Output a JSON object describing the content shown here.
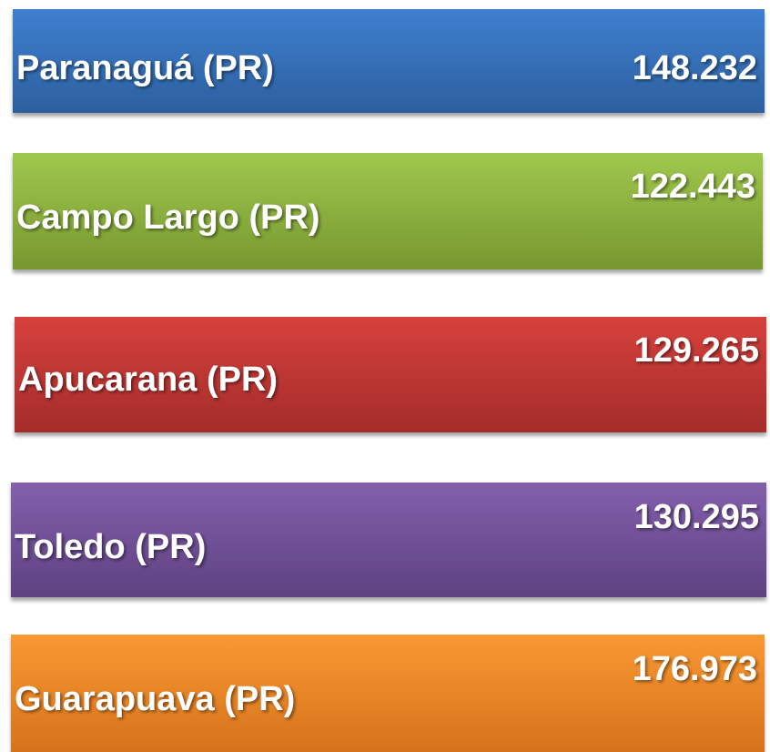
{
  "items": [
    {
      "label": "Paranaguá (PR)",
      "value": "148.232"
    },
    {
      "label": "Campo Largo (PR)",
      "value": "122.443"
    },
    {
      "label": "Apucarana (PR)",
      "value": "129.265"
    },
    {
      "label": "Toledo (PR)",
      "value": "130.295"
    },
    {
      "label": "Guarapuava (PR)",
      "value": "176.973"
    }
  ]
}
